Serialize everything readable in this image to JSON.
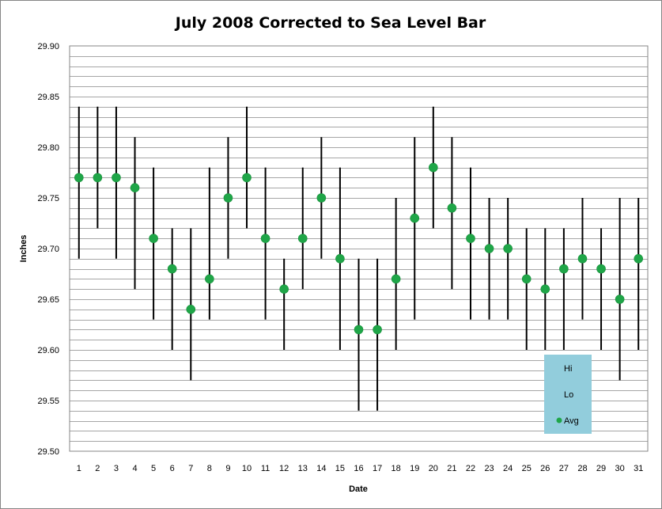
{
  "chart_data": {
    "type": "scatter",
    "title": "July 2008 Corrected to Sea Level Bar",
    "xlabel": "Date",
    "ylabel": "Inches",
    "ylim": [
      29.5,
      29.9
    ],
    "ytick_step": 0.05,
    "ytick_labels": [
      "29.50",
      "29.55",
      "29.60",
      "29.65",
      "29.70",
      "29.75",
      "29.80",
      "29.85",
      "29.90"
    ],
    "minor_grid_step": 0.01,
    "grid": true,
    "categories": [
      "1",
      "2",
      "3",
      "4",
      "5",
      "6",
      "7",
      "8",
      "9",
      "10",
      "11",
      "12",
      "13",
      "14",
      "15",
      "16",
      "17",
      "18",
      "19",
      "20",
      "21",
      "22",
      "23",
      "24",
      "25",
      "26",
      "27",
      "28",
      "29",
      "30",
      "31"
    ],
    "series": [
      {
        "name": "Hi",
        "values": [
          29.84,
          29.84,
          29.84,
          29.81,
          29.78,
          29.72,
          29.72,
          29.78,
          29.81,
          29.84,
          29.78,
          29.69,
          29.78,
          29.81,
          29.78,
          29.69,
          29.69,
          29.75,
          29.81,
          29.84,
          29.81,
          29.78,
          29.75,
          29.75,
          29.72,
          29.72,
          29.72,
          29.75,
          29.72,
          29.75,
          29.75
        ]
      },
      {
        "name": "Lo",
        "values": [
          29.69,
          29.72,
          29.69,
          29.66,
          29.63,
          29.6,
          29.57,
          29.63,
          29.69,
          29.72,
          29.63,
          29.6,
          29.66,
          29.69,
          29.6,
          29.54,
          29.54,
          29.6,
          29.63,
          29.72,
          29.66,
          29.63,
          29.63,
          29.63,
          29.6,
          29.6,
          29.6,
          29.63,
          29.6,
          29.57,
          29.6
        ]
      },
      {
        "name": "Avg",
        "values": [
          29.77,
          29.77,
          29.77,
          29.76,
          29.71,
          29.68,
          29.64,
          29.67,
          29.75,
          29.77,
          29.71,
          29.66,
          29.71,
          29.75,
          29.69,
          29.62,
          29.62,
          29.67,
          29.73,
          29.78,
          29.74,
          29.71,
          29.7,
          29.7,
          29.67,
          29.66,
          29.68,
          29.69,
          29.68,
          29.65,
          29.69
        ]
      }
    ],
    "legend": {
      "position": "bottom-right-inside",
      "entries": [
        "Hi",
        "Lo",
        "Avg"
      ]
    },
    "colors": {
      "range_line": "#000000",
      "avg_marker": "#1fa648",
      "legend_bg": "#92cddc",
      "grid": "#a6a6a6",
      "plot_border": "#868686"
    }
  }
}
